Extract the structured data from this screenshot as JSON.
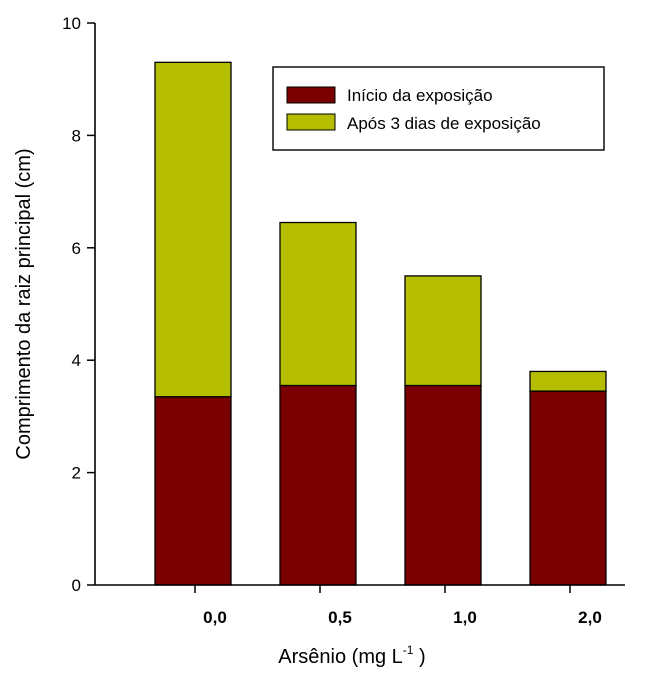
{
  "chart_data": {
    "type": "bar",
    "stacked": true,
    "categories": [
      "0,0",
      "0,5",
      "1,0",
      "2,0"
    ],
    "series": [
      {
        "name": "Início da exposição",
        "values": [
          3.35,
          3.55,
          3.55,
          3.45
        ],
        "color": "#7a0000"
      },
      {
        "name": "Após 3 dias de exposição",
        "values": [
          5.95,
          2.9,
          1.95,
          0.35
        ],
        "color": "#b5bd00"
      }
    ],
    "xlabel": "Arsênio (mg L",
    "xlabel_superscript": "-1",
    "xlabel_close": " )",
    "ylabel": "Comprimento da raiz principal (cm)",
    "ylim": [
      0,
      10
    ],
    "yticks": [
      "0",
      "2",
      "4",
      "6",
      "8",
      "10"
    ],
    "ytick_values": [
      0,
      2,
      4,
      6,
      8,
      10
    ],
    "grid": false,
    "legend_position": "top-right"
  }
}
